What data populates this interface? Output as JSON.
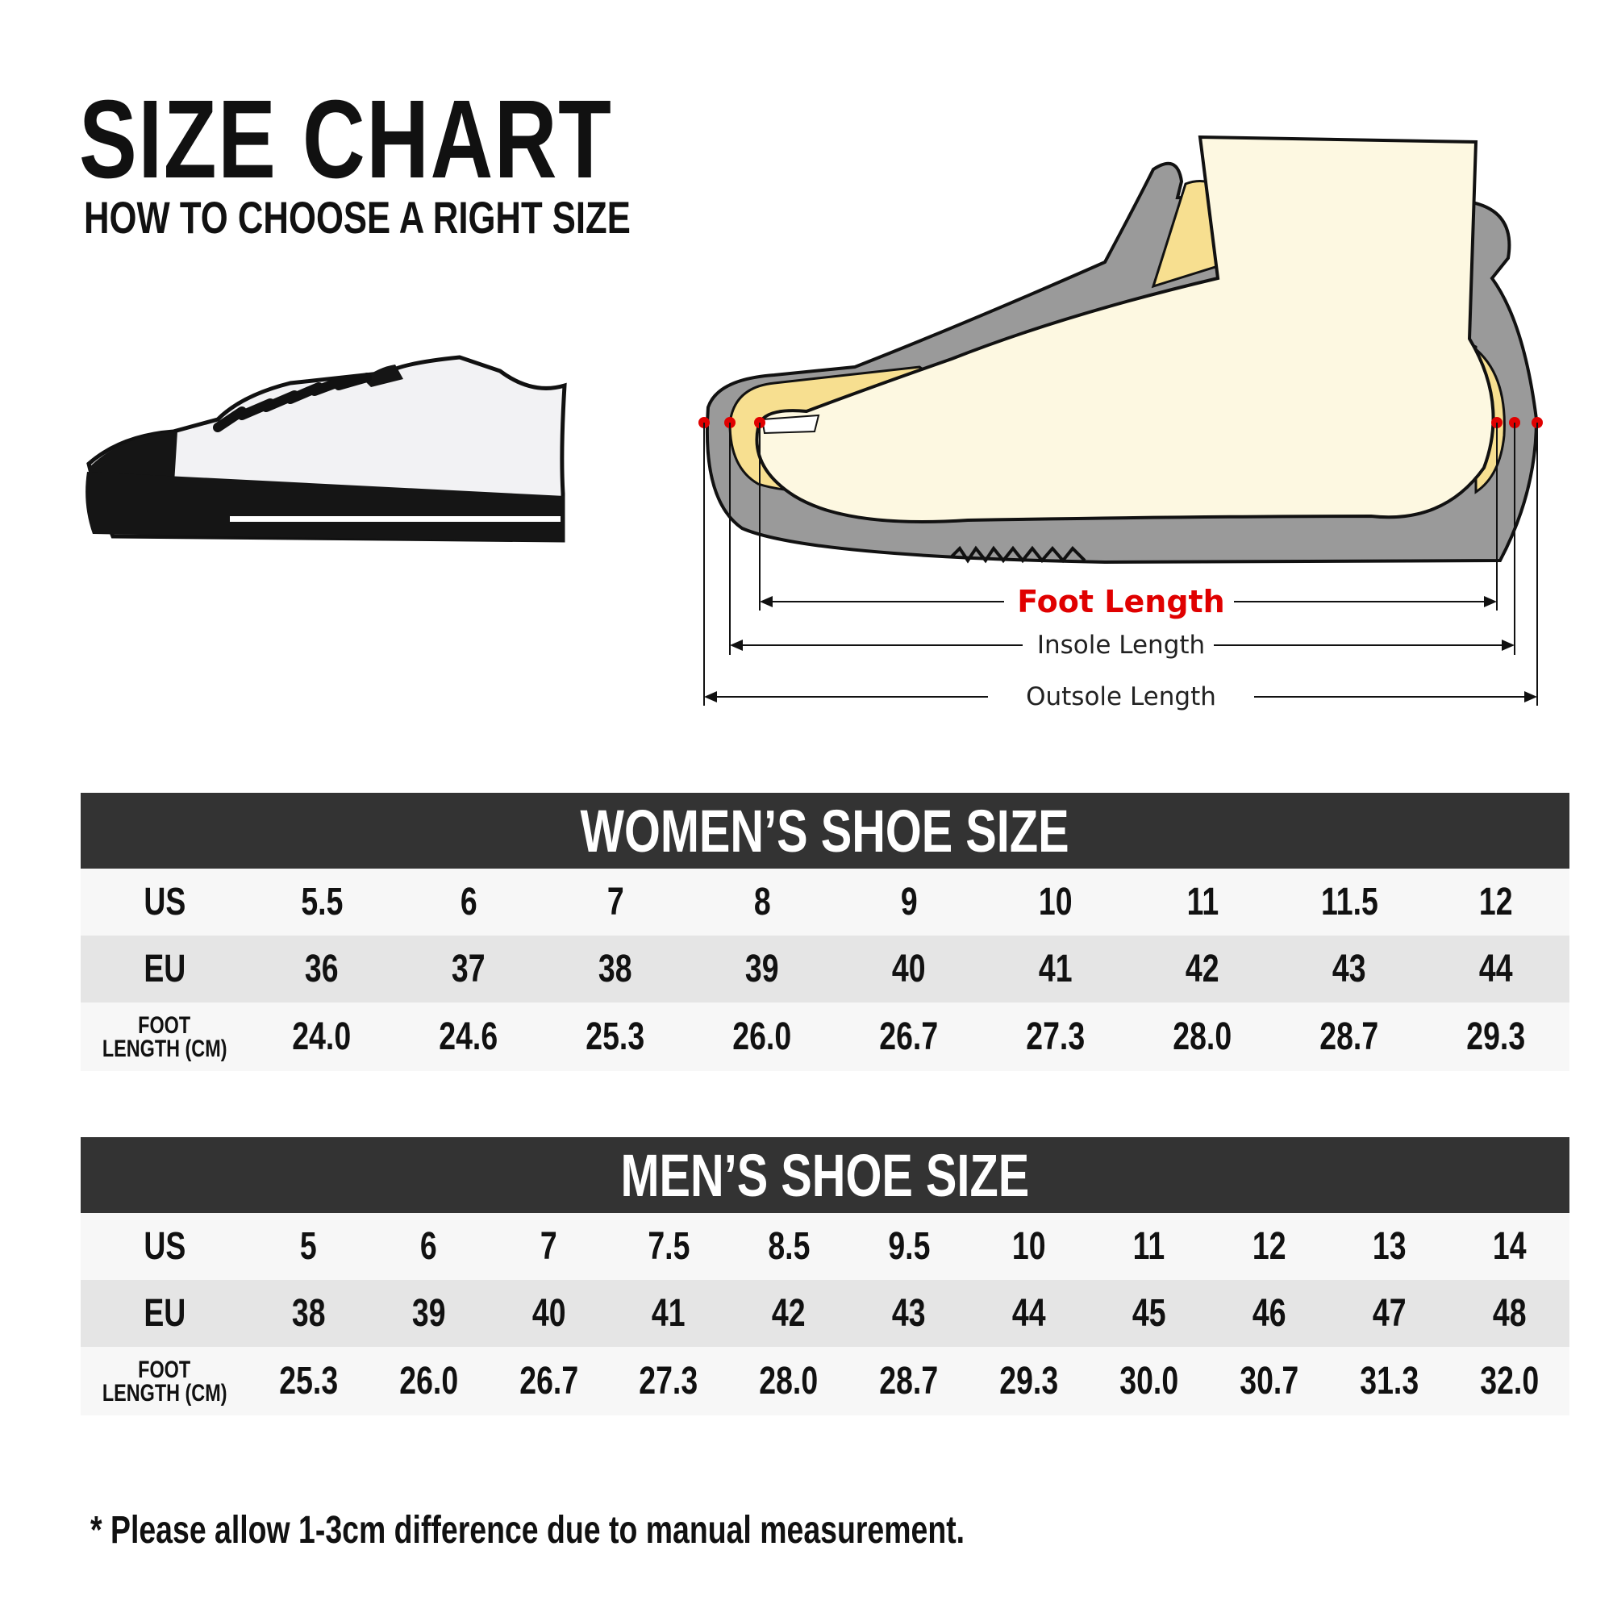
{
  "header": {
    "title": "SIZE CHART",
    "subtitle": "HOW TO CHOOSE A RIGHT SIZE"
  },
  "diagram": {
    "foot_length_label": "Foot Length",
    "insole_length_label": "Insole Length",
    "outsole_length_label": "Outsole Length",
    "colors": {
      "foot_length": "#e00000",
      "sole": "#999999",
      "insole": "#f7df90",
      "foot": "#fdf8e1"
    }
  },
  "women": {
    "title": "WOMEN’S SHOE SIZE",
    "row_labels": {
      "us": "US",
      "eu": "EU",
      "foot_line1": "FOOT",
      "foot_line2": "LENGTH (CM)"
    },
    "us": [
      "5.5",
      "6",
      "7",
      "8",
      "9",
      "10",
      "11",
      "11.5",
      "12"
    ],
    "eu": [
      "36",
      "37",
      "38",
      "39",
      "40",
      "41",
      "42",
      "43",
      "44"
    ],
    "foot_length_cm": [
      "24.0",
      "24.6",
      "25.3",
      "26.0",
      "26.7",
      "27.3",
      "28.0",
      "28.7",
      "29.3"
    ]
  },
  "men": {
    "title": "MEN’S SHOE SIZE",
    "row_labels": {
      "us": "US",
      "eu": "EU",
      "foot_line1": "FOOT",
      "foot_line2": "LENGTH (CM)"
    },
    "us": [
      "5",
      "6",
      "7",
      "7.5",
      "8.5",
      "9.5",
      "10",
      "11",
      "12",
      "13",
      "14"
    ],
    "eu": [
      "38",
      "39",
      "40",
      "41",
      "42",
      "43",
      "44",
      "45",
      "46",
      "47",
      "48"
    ],
    "foot_length_cm": [
      "25.3",
      "26.0",
      "26.7",
      "27.3",
      "28.0",
      "28.7",
      "29.3",
      "30.0",
      "30.7",
      "31.3",
      "32.0"
    ]
  },
  "footnote": "* Please allow 1-3cm difference due to manual measurement."
}
